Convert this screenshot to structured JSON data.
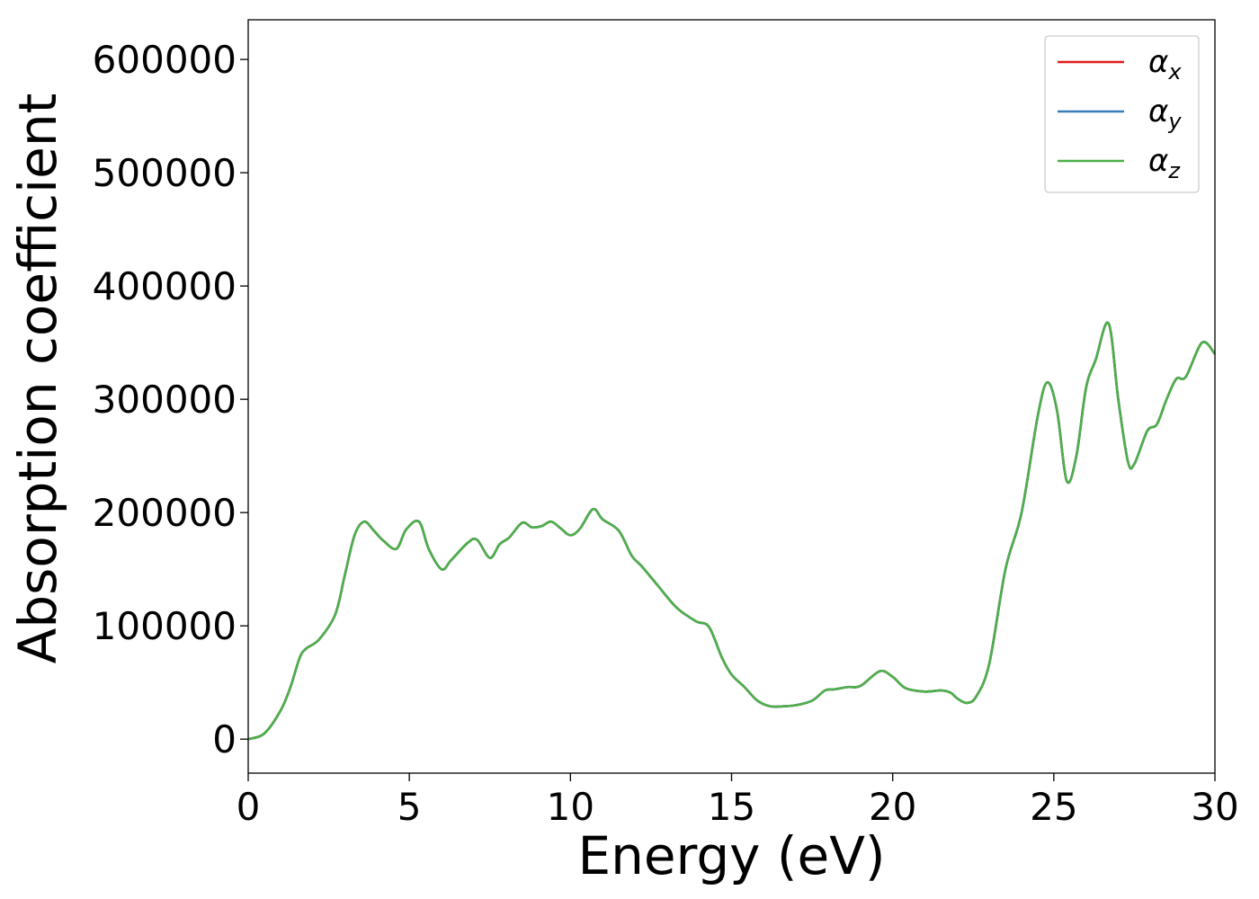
{
  "chart_data": {
    "type": "line",
    "title": "",
    "xlabel": "Energy (eV)",
    "ylabel": "Absorption coefficient",
    "xlim": [
      0,
      30
    ],
    "ylim": [
      -30000,
      635000
    ],
    "xticks": [
      0,
      5,
      10,
      15,
      20,
      25,
      30
    ],
    "yticks": [
      0,
      100000,
      200000,
      300000,
      400000,
      500000,
      600000
    ],
    "grid": false,
    "legend_position": "top-right",
    "series": [
      {
        "name": "α",
        "name_sub": "x",
        "color": "#e41a1c",
        "x": [
          0,
          0.5,
          1,
          1.3,
          1.6,
          1.8,
          2.2,
          2.7,
          3.0,
          3.3,
          3.6,
          3.9,
          4.2,
          4.6,
          4.9,
          5.3,
          5.6,
          6.0,
          6.3,
          6.8,
          7.1,
          7.5,
          7.8,
          8.1,
          8.5,
          8.8,
          9.1,
          9.4,
          9.7,
          10.0,
          10.3,
          10.7,
          11.0,
          11.5,
          11.9,
          12.2,
          12.7,
          13.3,
          13.9,
          14.3,
          14.7,
          15.0,
          15.4,
          15.8,
          16.2,
          16.6,
          17.0,
          17.5,
          17.9,
          18.2,
          18.6,
          19.0,
          19.6,
          20.0,
          20.4,
          21.0,
          21.5,
          21.8,
          22.0,
          22.3,
          22.6,
          23.0,
          23.5,
          24.0,
          24.5,
          24.8,
          25.1,
          25.4,
          25.7,
          26.0,
          26.3,
          26.7,
          27.0,
          27.3,
          27.5,
          27.9,
          28.2,
          28.5,
          28.8,
          29.1,
          29.6,
          30.0
        ],
        "y": [
          0,
          5000,
          25000,
          45000,
          72000,
          80000,
          88000,
          110000,
          145000,
          180000,
          192000,
          184000,
          175000,
          168000,
          185000,
          192000,
          168000,
          150000,
          158000,
          173000,
          176000,
          160000,
          172000,
          178000,
          191000,
          187000,
          188000,
          192000,
          186000,
          180000,
          186000,
          203000,
          194000,
          184000,
          162000,
          153000,
          136000,
          116000,
          104000,
          99000,
          72000,
          57000,
          46000,
          34000,
          29000,
          29000,
          30000,
          34000,
          43000,
          44000,
          46000,
          47000,
          60000,
          55000,
          45000,
          42000,
          43000,
          41000,
          36000,
          32000,
          38000,
          67000,
          150000,
          200000,
          285000,
          315000,
          290000,
          228000,
          250000,
          310000,
          335000,
          367000,
          300000,
          245000,
          243000,
          272000,
          278000,
          300000,
          318000,
          320000,
          350000,
          340000
        ]
      },
      {
        "name": "α",
        "name_sub": "y",
        "color": "#377eb8",
        "x": [
          0,
          0.5,
          1,
          1.3,
          1.6,
          1.8,
          2.2,
          2.7,
          3.0,
          3.3,
          3.6,
          3.9,
          4.2,
          4.6,
          4.9,
          5.3,
          5.6,
          6.0,
          6.3,
          6.8,
          7.1,
          7.5,
          7.8,
          8.1,
          8.5,
          8.8,
          9.1,
          9.4,
          9.7,
          10.0,
          10.3,
          10.7,
          11.0,
          11.5,
          11.9,
          12.2,
          12.7,
          13.3,
          13.9,
          14.3,
          14.7,
          15.0,
          15.4,
          15.8,
          16.2,
          16.6,
          17.0,
          17.5,
          17.9,
          18.2,
          18.6,
          19.0,
          19.6,
          20.0,
          20.4,
          21.0,
          21.5,
          21.8,
          22.0,
          22.3,
          22.6,
          23.0,
          23.5,
          24.0,
          24.5,
          24.8,
          25.1,
          25.4,
          25.7,
          26.0,
          26.3,
          26.7,
          27.0,
          27.3,
          27.5,
          27.9,
          28.2,
          28.5,
          28.8,
          29.1,
          29.6,
          30.0
        ],
        "y": [
          0,
          5000,
          25000,
          45000,
          72000,
          80000,
          88000,
          110000,
          145000,
          180000,
          192000,
          184000,
          175000,
          168000,
          185000,
          192000,
          168000,
          150000,
          158000,
          173000,
          176000,
          160000,
          172000,
          178000,
          191000,
          187000,
          188000,
          192000,
          186000,
          180000,
          186000,
          203000,
          194000,
          184000,
          162000,
          153000,
          136000,
          116000,
          104000,
          99000,
          72000,
          57000,
          46000,
          34000,
          29000,
          29000,
          30000,
          34000,
          43000,
          44000,
          46000,
          47000,
          60000,
          55000,
          45000,
          42000,
          43000,
          41000,
          36000,
          32000,
          38000,
          67000,
          150000,
          200000,
          285000,
          315000,
          290000,
          228000,
          250000,
          310000,
          335000,
          367000,
          300000,
          245000,
          243000,
          272000,
          278000,
          300000,
          318000,
          320000,
          350000,
          340000
        ]
      },
      {
        "name": "α",
        "name_sub": "z",
        "color": "#4daf4a",
        "x": [
          0,
          0.5,
          1,
          1.3,
          1.6,
          1.8,
          2.2,
          2.7,
          3.0,
          3.3,
          3.6,
          3.9,
          4.2,
          4.6,
          4.9,
          5.3,
          5.6,
          6.0,
          6.3,
          6.8,
          7.1,
          7.5,
          7.8,
          8.1,
          8.5,
          8.8,
          9.1,
          9.4,
          9.7,
          10.0,
          10.3,
          10.7,
          11.0,
          11.5,
          11.9,
          12.2,
          12.7,
          13.3,
          13.9,
          14.3,
          14.7,
          15.0,
          15.4,
          15.8,
          16.2,
          16.6,
          17.0,
          17.5,
          17.9,
          18.2,
          18.6,
          19.0,
          19.6,
          20.0,
          20.4,
          21.0,
          21.5,
          21.8,
          22.0,
          22.3,
          22.6,
          23.0,
          23.5,
          24.0,
          24.5,
          24.8,
          25.1,
          25.4,
          25.7,
          26.0,
          26.3,
          26.7,
          27.0,
          27.3,
          27.5,
          27.9,
          28.2,
          28.5,
          28.8,
          29.1,
          29.6,
          30.0
        ],
        "y": [
          0,
          5000,
          25000,
          45000,
          72000,
          80000,
          88000,
          110000,
          145000,
          180000,
          192000,
          184000,
          175000,
          168000,
          185000,
          192000,
          168000,
          150000,
          158000,
          173000,
          176000,
          160000,
          172000,
          178000,
          191000,
          187000,
          188000,
          192000,
          186000,
          180000,
          186000,
          203000,
          194000,
          184000,
          162000,
          153000,
          136000,
          116000,
          104000,
          99000,
          72000,
          57000,
          46000,
          34000,
          29000,
          29000,
          30000,
          34000,
          43000,
          44000,
          46000,
          47000,
          60000,
          55000,
          45000,
          42000,
          43000,
          41000,
          36000,
          32000,
          38000,
          67000,
          150000,
          200000,
          285000,
          315000,
          290000,
          228000,
          250000,
          310000,
          335000,
          367000,
          300000,
          245000,
          243000,
          272000,
          278000,
          300000,
          318000,
          320000,
          350000,
          340000
        ]
      }
    ]
  }
}
